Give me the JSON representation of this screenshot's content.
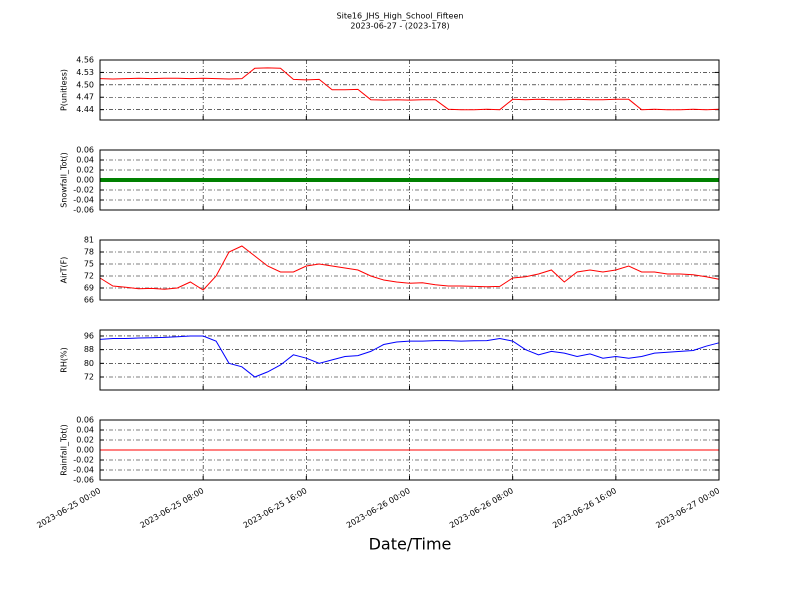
{
  "figure": {
    "title": "Site16_JHS_High_School_Fifteen",
    "subtitle": "2023-06-27 - (2023-178)",
    "xlabel": "Date/Time",
    "xlim": [
      "2023-06-25 00:00",
      "2023-06-27 00:00"
    ],
    "xticks": [
      "2023-06-25 00:00",
      "2023-06-25 08:00",
      "2023-06-25 16:00",
      "2023-06-26 00:00",
      "2023-06-26 08:00",
      "2023-06-26 16:00",
      "2023-06-27 00:00"
    ],
    "x": [
      "2023-06-25 00:00",
      "2023-06-25 01:00",
      "2023-06-25 02:00",
      "2023-06-25 03:00",
      "2023-06-25 04:00",
      "2023-06-25 05:00",
      "2023-06-25 06:00",
      "2023-06-25 07:00",
      "2023-06-25 08:00",
      "2023-06-25 09:00",
      "2023-06-25 10:00",
      "2023-06-25 11:00",
      "2023-06-25 12:00",
      "2023-06-25 13:00",
      "2023-06-25 14:00",
      "2023-06-25 15:00",
      "2023-06-25 16:00",
      "2023-06-25 17:00",
      "2023-06-25 18:00",
      "2023-06-25 19:00",
      "2023-06-25 20:00",
      "2023-06-25 21:00",
      "2023-06-25 22:00",
      "2023-06-25 23:00",
      "2023-06-26 00:00",
      "2023-06-26 01:00",
      "2023-06-26 02:00",
      "2023-06-26 03:00",
      "2023-06-26 04:00",
      "2023-06-26 05:00",
      "2023-06-26 06:00",
      "2023-06-26 07:00",
      "2023-06-26 08:00",
      "2023-06-26 09:00",
      "2023-06-26 10:00",
      "2023-06-26 11:00",
      "2023-06-26 12:00",
      "2023-06-26 13:00",
      "2023-06-26 14:00",
      "2023-06-26 15:00",
      "2023-06-26 16:00",
      "2023-06-26 17:00",
      "2023-06-26 18:00",
      "2023-06-26 19:00",
      "2023-06-26 20:00",
      "2023-06-26 21:00",
      "2023-06-26 22:00",
      "2023-06-26 23:00",
      "2023-06-27 00:00"
    ]
  },
  "chart_data": [
    {
      "type": "line",
      "ylabel": "P(unitless)",
      "ylim": [
        4.415,
        4.56
      ],
      "yticks": [
        4.44,
        4.47,
        4.5,
        {
          "value": 4.5,
          "label": "4.50"
        },
        4.53,
        4.56
      ],
      "grid": true,
      "series": [
        {
          "color": "#ff0000",
          "values": [
            4.515,
            4.514,
            4.515,
            4.516,
            4.515,
            4.516,
            4.516,
            4.515,
            4.516,
            4.515,
            4.514,
            4.515,
            4.54,
            4.541,
            4.54,
            4.513,
            4.512,
            4.513,
            4.488,
            4.488,
            4.489,
            4.464,
            4.463,
            4.464,
            4.463,
            4.464,
            4.464,
            4.441,
            4.44,
            4.44,
            4.441,
            4.44,
            4.465,
            4.464,
            4.465,
            4.464,
            4.464,
            4.465,
            4.464,
            4.464,
            4.465,
            4.465,
            4.44,
            4.441,
            4.44,
            4.44,
            4.441,
            4.44,
            4.441
          ]
        }
      ]
    },
    {
      "type": "line",
      "ylabel": "Snowfall_Tot()",
      "ylim": [
        -0.06,
        0.06
      ],
      "yticks": [
        -0.06,
        -0.04,
        -0.02,
        {
          "value": 0,
          "label": "0.00"
        },
        0.02,
        0.04,
        0.06
      ],
      "grid": true,
      "series": [
        {
          "color": "#008000",
          "width": 4,
          "values": [
            0,
            0,
            0,
            0,
            0,
            0,
            0,
            0,
            0,
            0,
            0,
            0,
            0,
            0,
            0,
            0,
            0,
            0,
            0,
            0,
            0,
            0,
            0,
            0,
            0,
            0,
            0,
            0,
            0,
            0,
            0,
            0,
            0,
            0,
            0,
            0,
            0,
            0,
            0,
            0,
            0,
            0,
            0,
            0,
            0,
            0,
            0,
            0,
            0
          ]
        }
      ]
    },
    {
      "type": "line",
      "ylabel": "AirT(F)",
      "ylim": [
        66,
        81
      ],
      "yticks": [
        66,
        69,
        72,
        75,
        78,
        81
      ],
      "grid": true,
      "series": [
        {
          "color": "#ff0000",
          "values": [
            71.5,
            69.5,
            69.2,
            68.8,
            68.9,
            68.7,
            69,
            70.5,
            68.5,
            72,
            78,
            79.5,
            77,
            74.5,
            73,
            73,
            74.5,
            75,
            74.5,
            74,
            73.5,
            72,
            71,
            70.5,
            70.2,
            70.3,
            69.8,
            69.5,
            69.5,
            69.4,
            69.3,
            69.4,
            71.5,
            71.8,
            72.5,
            73.5,
            70.5,
            73,
            73.5,
            73,
            73.5,
            74.5,
            73,
            73,
            72.5,
            72.5,
            72.3,
            71.8,
            71.2
          ]
        }
      ]
    },
    {
      "type": "line",
      "ylabel": "RH(%)",
      "ylim": [
        64.4,
        99.5
      ],
      "yticks": [
        72,
        80,
        88,
        96
      ],
      "grid": true,
      "series": [
        {
          "color": "#0000ff",
          "values": [
            94,
            94.5,
            94.5,
            94.8,
            95,
            95.2,
            95.5,
            96,
            96,
            93,
            80,
            78,
            72,
            75,
            79,
            85,
            83,
            80,
            82,
            84,
            84.5,
            87,
            91,
            92.5,
            93,
            93,
            93.3,
            93.3,
            93,
            93.2,
            93.3,
            94.5,
            93,
            88,
            85,
            87,
            86,
            84,
            85.5,
            83,
            84,
            83,
            84,
            86,
            86.5,
            87,
            87.5,
            90,
            92
          ]
        }
      ]
    },
    {
      "type": "line",
      "ylabel": "Rainfall_Tot()",
      "ylim": [
        -0.06,
        0.06
      ],
      "yticks": [
        -0.06,
        -0.04,
        -0.02,
        {
          "value": 0,
          "label": "0.00"
        },
        0.02,
        0.04,
        0.06
      ],
      "grid": true,
      "series": [
        {
          "color": "#ff0000",
          "values": [
            0,
            0,
            0,
            0,
            0,
            0,
            0,
            0,
            0,
            0,
            0,
            0,
            0,
            0,
            0,
            0,
            0,
            0,
            0,
            0,
            0,
            0,
            0,
            0,
            0,
            0,
            0,
            0,
            0,
            0,
            0,
            0,
            0,
            0,
            0,
            0,
            0,
            0,
            0,
            0,
            0,
            0,
            0,
            0,
            0,
            0,
            0,
            0,
            0
          ]
        }
      ]
    }
  ]
}
